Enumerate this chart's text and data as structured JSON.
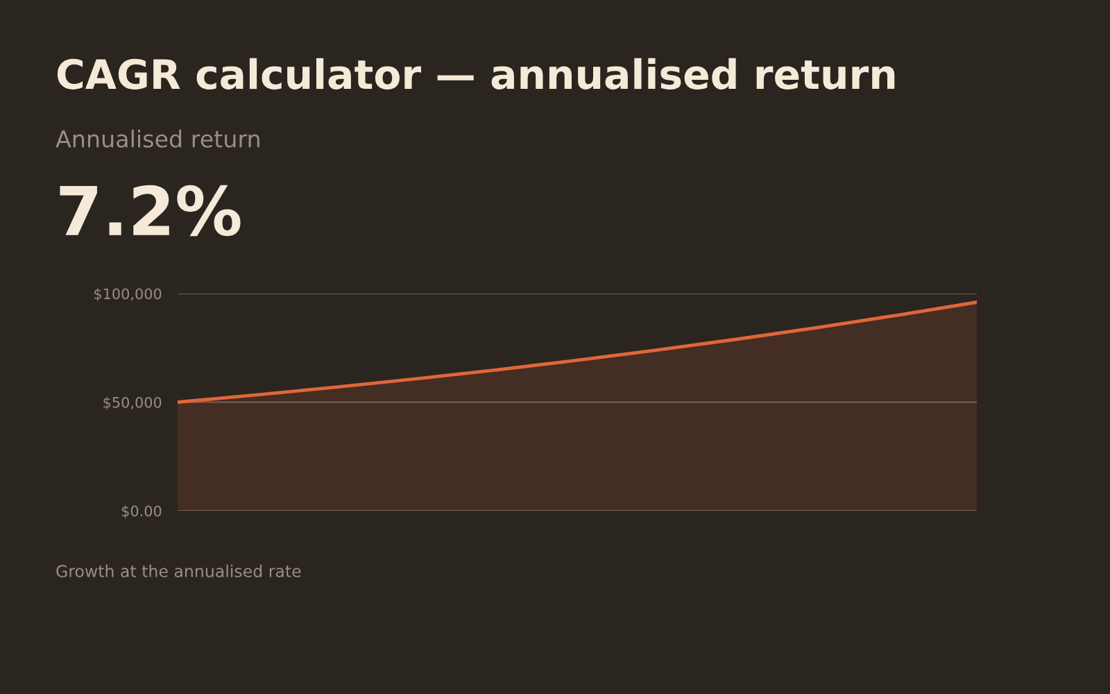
{
  "chart_data": {
    "type": "area",
    "title": "CAGR calculator — annualised return",
    "subtitle": "Annualised return",
    "annotations": [
      "7.2%",
      "Growth at the annualised rate"
    ],
    "categories": [
      null,
      null,
      null,
      null,
      null,
      null,
      null,
      null,
      null,
      null,
      null
    ],
    "series": [
      {
        "color": "#e0663a",
        "values": [
          50000,
          53400,
          57000,
          60800,
          64900,
          69300,
          74000,
          79000,
          84300,
          90000,
          96000
        ]
      }
    ],
    "ylim": [
      0,
      100000
    ],
    "yticks": [
      {
        "value": 0,
        "label": "$0.00"
      },
      {
        "value": 50000,
        "label": "$50,000"
      },
      {
        "value": 100000,
        "label": "$100,000"
      }
    ],
    "grid": "y",
    "legend": false
  }
}
